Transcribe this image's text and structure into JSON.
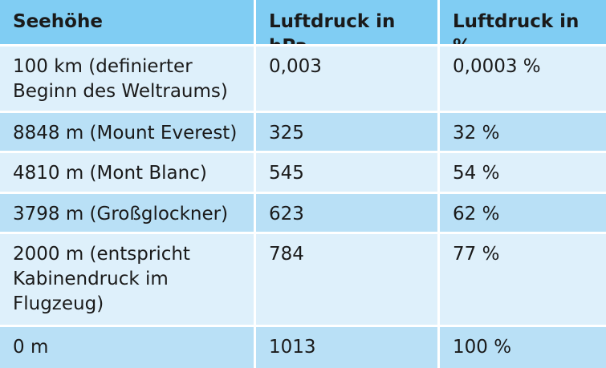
{
  "table": {
    "header": [
      "Seehöhe",
      "Luftdruck in hPa",
      "Luftdruck in %"
    ],
    "rows": [
      [
        "100 km (definierter Beginn des Weltraums)",
        "0,003",
        "0,0003 %"
      ],
      [
        "8848 m (Mount Everest)",
        "325",
        "32 %"
      ],
      [
        "4810 m (Mont Blanc)",
        "545",
        "54 %"
      ],
      [
        "3798 m (Großglockner)",
        "623",
        "62 %"
      ],
      [
        "2000 m (entspricht Kabinendruck im Flugzeug)",
        "784",
        "77 %"
      ],
      [
        "0 m",
        "1013",
        "100 %"
      ]
    ]
  }
}
